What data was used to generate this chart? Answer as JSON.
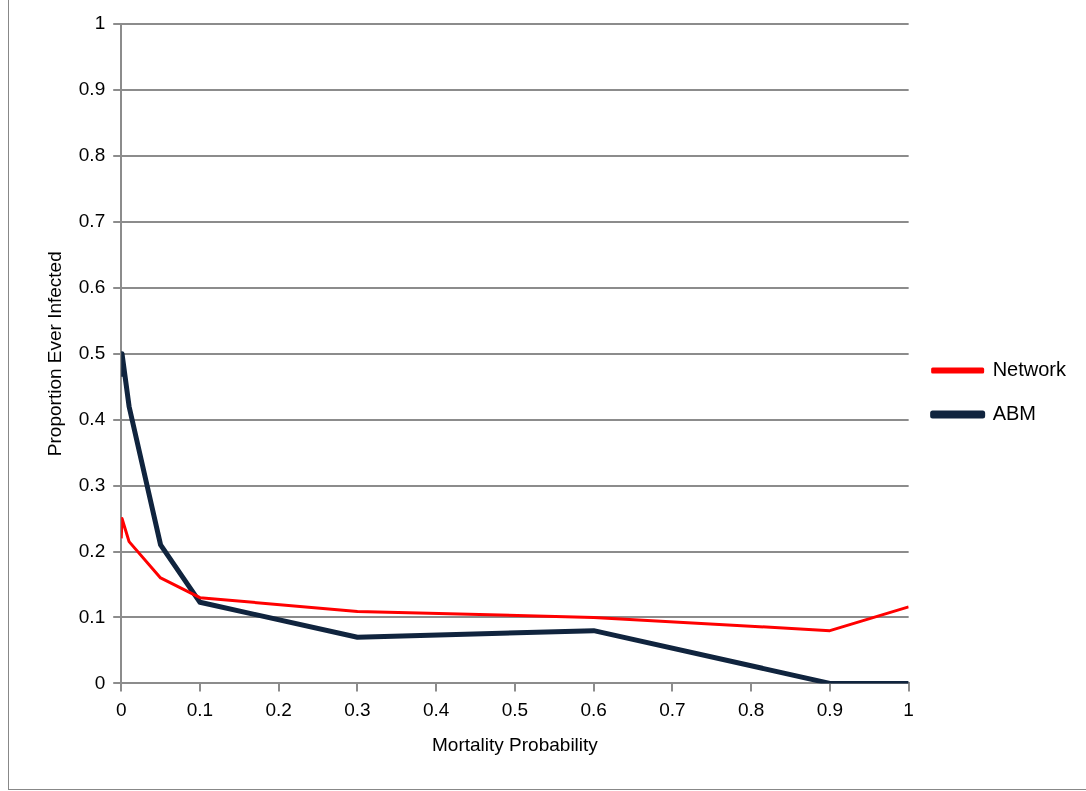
{
  "chart_data": {
    "type": "line",
    "xlabel": "Mortality Probability",
    "ylabel": "Proportion Ever Infected",
    "xlim": [
      0,
      1
    ],
    "xticks": [
      0,
      0.1,
      0.2,
      0.3,
      0.4,
      0.5,
      0.6,
      0.7,
      0.8,
      0.9,
      1
    ],
    "ylim": [
      0,
      1
    ],
    "yticks": [
      0,
      0.1,
      0.2,
      0.3,
      0.4,
      0.5,
      0.6,
      0.7,
      0.8,
      0.9,
      1
    ],
    "grid": "y",
    "legend": "right",
    "marker": "none",
    "line_style": "solid",
    "series": [
      {
        "name": "Network",
        "color": "#ff0000",
        "x": [
          0,
          0.001,
          0.01,
          0.05,
          0.1,
          0.3,
          0.6,
          0.9,
          1
        ],
        "values": [
          0.22,
          0.25,
          0.215,
          0.16,
          0.13,
          0.109,
          0.1,
          0.08,
          0.116
        ]
      },
      {
        "name": "ABM",
        "color": "#10243e",
        "x": [
          0,
          0.001,
          0.01,
          0.05,
          0.1,
          0.3,
          0.6,
          0.9,
          1
        ],
        "values": [
          0.465,
          0.5,
          0.42,
          0.21,
          0.123,
          0.07,
          0.08,
          0,
          0
        ]
      }
    ]
  }
}
